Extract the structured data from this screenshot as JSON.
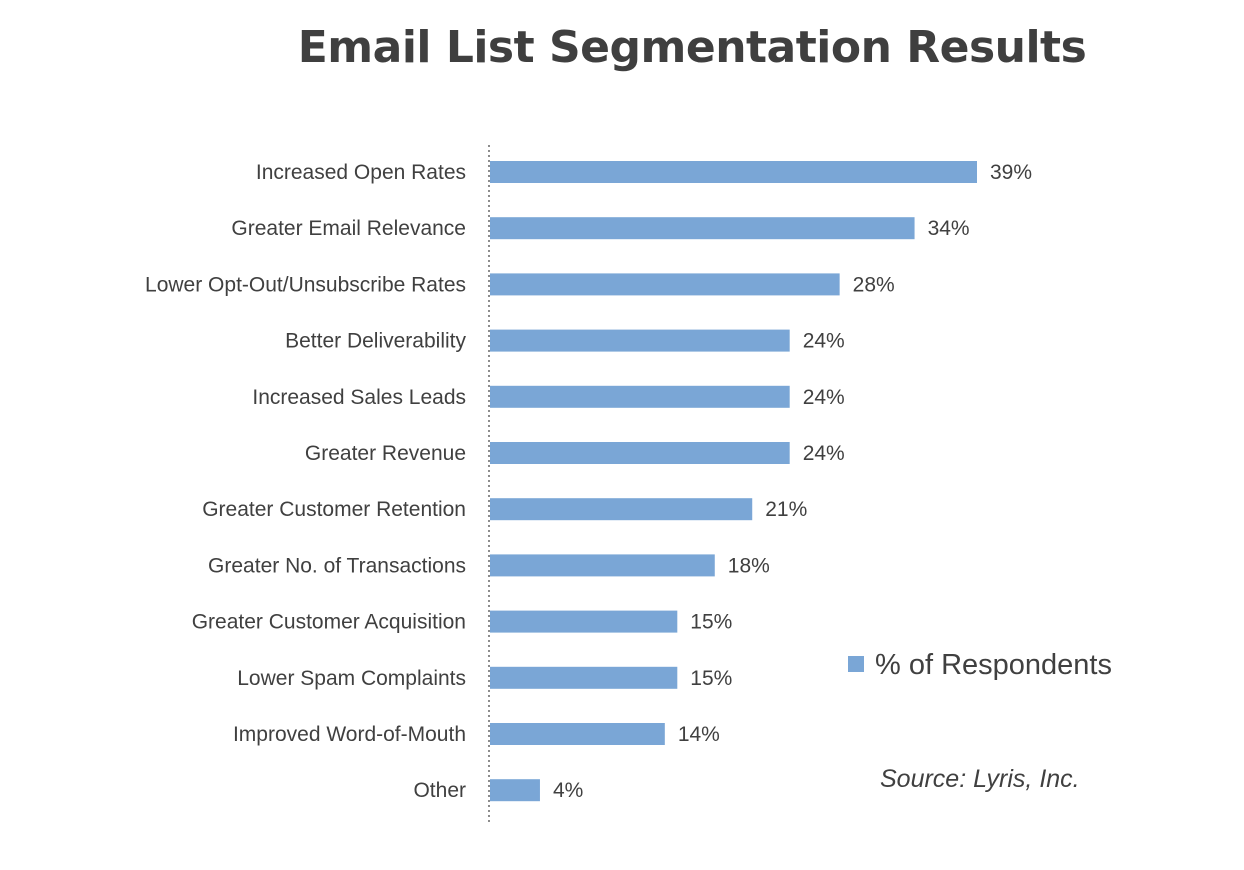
{
  "chart_data": {
    "type": "bar",
    "orientation": "horizontal",
    "title": "Email List Segmentation Results",
    "categories": [
      "Increased Open Rates",
      "Greater Email Relevance",
      "Lower Opt-Out/Unsubscribe Rates",
      "Better Deliverability",
      "Increased Sales Leads",
      "Greater Revenue",
      "Greater Customer Retention",
      "Greater No. of Transactions",
      "Greater Customer Acquisition",
      "Lower Spam Complaints",
      "Improved Word-of-Mouth",
      "Other"
    ],
    "series": [
      {
        "name": "% of Respondents",
        "values": [
          39,
          34,
          28,
          24,
          24,
          24,
          21,
          18,
          15,
          15,
          14,
          4
        ],
        "labels": [
          "39%",
          "34%",
          "28%",
          "24%",
          "24%",
          "24%",
          "21%",
          "18%",
          "15%",
          "15%",
          "14%",
          "4%"
        ],
        "color": "#7aa6d6"
      }
    ],
    "xlim": [
      0,
      40
    ],
    "grid": false,
    "legend": "right",
    "source": "Source: Lyris, Inc."
  }
}
